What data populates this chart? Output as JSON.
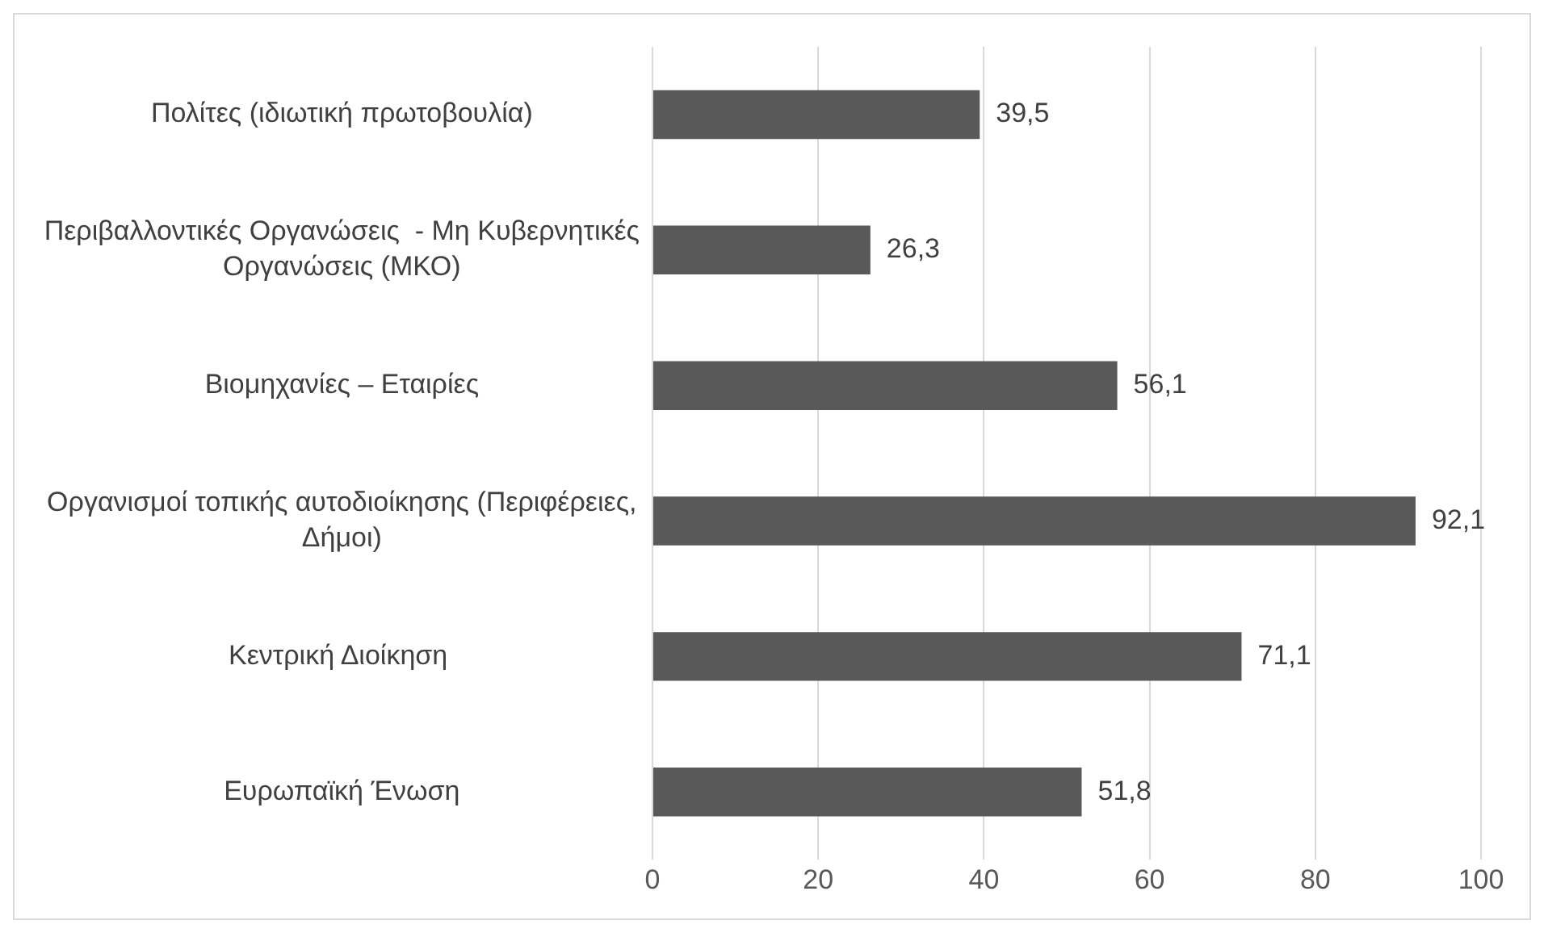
{
  "chart_data": {
    "type": "bar",
    "orientation": "horizontal",
    "categories": [
      "Πολίτες (ιδιωτική πρωτοβουλία)",
      "Περιβαλλοντικές Οργανώσεις  - Μη Κυβερνητικές Οργανώσεις (ΜΚΟ)",
      "Βιομηχανίες – Εταιρίες",
      "Οργανισμοί τοπικής αυτοδιοίκησης (Περιφέρειες, Δήμοι)",
      "Κεντρική Διοίκηση ",
      "Ευρωπαϊκή Ένωση"
    ],
    "values": [
      39.5,
      26.3,
      56.1,
      92.1,
      71.1,
      51.8
    ],
    "value_labels": [
      "39,5",
      "26,3",
      "56,1",
      "92,1",
      "71,1",
      "51,8"
    ],
    "color": "#595959",
    "xlim": [
      0,
      100
    ],
    "xticks": [
      0,
      20,
      40,
      60,
      80,
      100
    ],
    "grid": "x",
    "legend": false
  }
}
